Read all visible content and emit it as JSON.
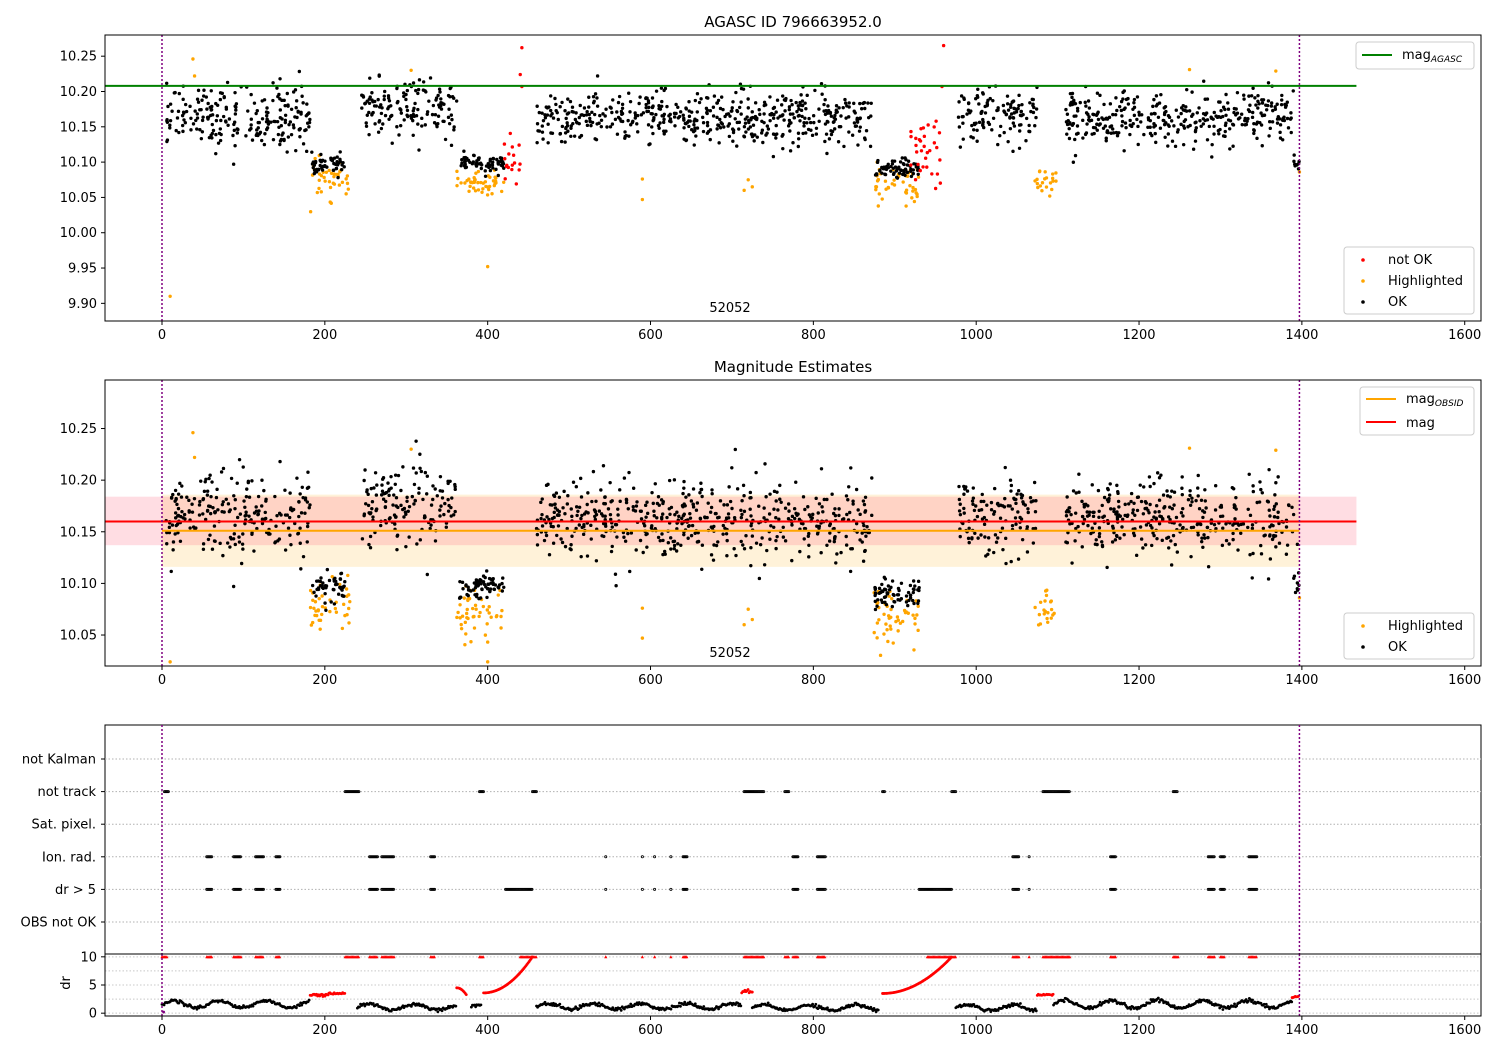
{
  "chart_data": [
    {
      "type": "scatter",
      "title": "AGASC ID 796663952.0",
      "xlim": [
        -70,
        1620
      ],
      "ylim": [
        9.875,
        10.28
      ],
      "xticks": [
        0,
        200,
        400,
        600,
        800,
        1000,
        1200,
        1400,
        1600
      ],
      "yticks": [
        9.9,
        9.95,
        10.0,
        10.05,
        10.1,
        10.15,
        10.2,
        10.25
      ],
      "obsid_boundaries": [
        0,
        1397
      ],
      "obsid_label": "52052",
      "lines": [
        {
          "name": "mag",
          "subscript": "AGASC",
          "y": 10.208,
          "x_range": [
            -70,
            1467
          ],
          "color": "#008000"
        }
      ],
      "legend": {
        "placement": "lower right",
        "entries": [
          {
            "label": "not OK",
            "color": "#ff0000"
          },
          {
            "label": "Highlighted",
            "color": "#ffa500"
          },
          {
            "label": "OK",
            "color": "#000000"
          }
        ]
      },
      "line_legend": {
        "placement": "upper right"
      },
      "segments": [
        {
          "x": [
            5,
            182
          ],
          "mean": 10.165,
          "sd": 0.022,
          "kind": "ok"
        },
        {
          "x": [
            182,
            232
          ],
          "mean": 10.075,
          "sd": 0.013,
          "kind": "hl"
        },
        {
          "x": [
            184,
            225
          ],
          "mean": 10.095,
          "sd": 0.007,
          "kind": "ok"
        },
        {
          "x": [
            245,
            362
          ],
          "mean": 10.175,
          "sd": 0.02,
          "kind": "ok"
        },
        {
          "x": [
            362,
            420
          ],
          "mean": 10.072,
          "sd": 0.012,
          "kind": "hl"
        },
        {
          "x": [
            365,
            420
          ],
          "mean": 10.097,
          "sd": 0.006,
          "kind": "ok"
        },
        {
          "x": [
            420,
            441
          ],
          "mean": 10.105,
          "sd": 0.015,
          "kind": "bad"
        },
        {
          "x": [
            460,
            872
          ],
          "mean": 10.162,
          "sd": 0.019,
          "kind": "ok"
        },
        {
          "x": [
            872,
            930
          ],
          "mean": 10.068,
          "sd": 0.015,
          "kind": "hl"
        },
        {
          "x": [
            875,
            930
          ],
          "mean": 10.09,
          "sd": 0.007,
          "kind": "ok"
        },
        {
          "x": [
            918,
            958
          ],
          "mean": 10.115,
          "sd": 0.02,
          "kind": "bad"
        },
        {
          "x": [
            978,
            1075
          ],
          "mean": 10.165,
          "sd": 0.019,
          "kind": "ok"
        },
        {
          "x": [
            1072,
            1098
          ],
          "mean": 10.072,
          "sd": 0.009,
          "kind": "hl"
        },
        {
          "x": [
            1110,
            1390
          ],
          "mean": 10.163,
          "sd": 0.019,
          "kind": "ok"
        },
        {
          "x": [
            1390,
            1397
          ],
          "mean": 10.1,
          "sd": 0.01,
          "kind": "ok"
        }
      ],
      "points": [
        {
          "x": 10,
          "y": 9.91,
          "kind": "hl"
        },
        {
          "x": 400,
          "y": 9.952,
          "kind": "hl"
        },
        {
          "x": 38,
          "y": 10.246,
          "kind": "hl"
        },
        {
          "x": 40,
          "y": 10.222,
          "kind": "hl"
        },
        {
          "x": 306,
          "y": 10.23,
          "kind": "hl"
        },
        {
          "x": 590,
          "y": 10.076,
          "kind": "hl"
        },
        {
          "x": 590,
          "y": 10.047,
          "kind": "hl"
        },
        {
          "x": 715,
          "y": 10.06,
          "kind": "hl"
        },
        {
          "x": 720,
          "y": 10.075,
          "kind": "hl"
        },
        {
          "x": 725,
          "y": 10.065,
          "kind": "hl"
        },
        {
          "x": 1262,
          "y": 10.231,
          "kind": "hl"
        },
        {
          "x": 1368,
          "y": 10.229,
          "kind": "hl"
        },
        {
          "x": 1397,
          "y": 10.086,
          "kind": "hl"
        },
        {
          "x": 442,
          "y": 10.262,
          "kind": "bad"
        },
        {
          "x": 440,
          "y": 10.224,
          "kind": "bad"
        },
        {
          "x": 442,
          "y": 10.207,
          "kind": "bad"
        },
        {
          "x": 960,
          "y": 10.265,
          "kind": "bad"
        },
        {
          "x": 958,
          "y": 10.207,
          "kind": "bad"
        },
        {
          "x": 145,
          "y": 10.218,
          "kind": "ok"
        },
        {
          "x": 88,
          "y": 10.097,
          "kind": "ok"
        },
        {
          "x": 810,
          "y": 10.211,
          "kind": "ok"
        }
      ]
    },
    {
      "type": "scatter",
      "title": "Magnitude Estimates",
      "xlim": [
        -70,
        1620
      ],
      "ylim": [
        10.02,
        10.297
      ],
      "xticks": [
        0,
        200,
        400,
        600,
        800,
        1000,
        1200,
        1400,
        1600
      ],
      "yticks": [
        10.05,
        10.1,
        10.15,
        10.2,
        10.25
      ],
      "obsid_boundaries": [
        0,
        1397
      ],
      "obsid_label": "52052",
      "lines": [
        {
          "name": "mag",
          "subscript": "OBSID",
          "y": 10.151,
          "x_range": [
            0,
            1397
          ],
          "color": "#ffa500"
        },
        {
          "name": "mag",
          "subscript": "",
          "y": 10.16,
          "x_range": [
            -70,
            1467
          ],
          "color": "#ff0000"
        }
      ],
      "bands": [
        {
          "y_range": [
            10.116,
            10.186
          ],
          "x_range": [
            0,
            1397
          ],
          "color": "#ffa500"
        },
        {
          "y_range": [
            10.137,
            10.184
          ],
          "x_range": [
            -70,
            1467
          ],
          "color": "#ff6680"
        }
      ],
      "legend": {
        "placement": "lower right",
        "entries": [
          {
            "label": "Highlighted",
            "color": "#ffa500"
          },
          {
            "label": "OK",
            "color": "#000000"
          }
        ]
      },
      "line_legend": {
        "placement": "upper right"
      },
      "segments": [
        {
          "x": [
            5,
            182
          ],
          "mean": 10.165,
          "sd": 0.022,
          "kind": "ok"
        },
        {
          "x": [
            182,
            232
          ],
          "mean": 10.075,
          "sd": 0.013,
          "kind": "hl"
        },
        {
          "x": [
            184,
            225
          ],
          "mean": 10.095,
          "sd": 0.007,
          "kind": "ok"
        },
        {
          "x": [
            245,
            362
          ],
          "mean": 10.175,
          "sd": 0.02,
          "kind": "ok"
        },
        {
          "x": [
            362,
            420
          ],
          "mean": 10.072,
          "sd": 0.012,
          "kind": "hl"
        },
        {
          "x": [
            365,
            420
          ],
          "mean": 10.097,
          "sd": 0.006,
          "kind": "ok"
        },
        {
          "x": [
            460,
            872
          ],
          "mean": 10.162,
          "sd": 0.019,
          "kind": "ok"
        },
        {
          "x": [
            872,
            930
          ],
          "mean": 10.068,
          "sd": 0.015,
          "kind": "hl"
        },
        {
          "x": [
            875,
            930
          ],
          "mean": 10.09,
          "sd": 0.007,
          "kind": "ok"
        },
        {
          "x": [
            978,
            1075
          ],
          "mean": 10.165,
          "sd": 0.019,
          "kind": "ok"
        },
        {
          "x": [
            1072,
            1098
          ],
          "mean": 10.072,
          "sd": 0.009,
          "kind": "hl"
        },
        {
          "x": [
            1110,
            1390
          ],
          "mean": 10.163,
          "sd": 0.019,
          "kind": "ok"
        },
        {
          "x": [
            1390,
            1397
          ],
          "mean": 10.1,
          "sd": 0.01,
          "kind": "ok"
        }
      ],
      "points": [
        {
          "x": 10,
          "y": 10.024,
          "kind": "hl"
        },
        {
          "x": 400,
          "y": 10.024,
          "kind": "hl"
        },
        {
          "x": 38,
          "y": 10.246,
          "kind": "hl"
        },
        {
          "x": 40,
          "y": 10.222,
          "kind": "hl"
        },
        {
          "x": 306,
          "y": 10.23,
          "kind": "hl"
        },
        {
          "x": 590,
          "y": 10.076,
          "kind": "hl"
        },
        {
          "x": 590,
          "y": 10.047,
          "kind": "hl"
        },
        {
          "x": 715,
          "y": 10.06,
          "kind": "hl"
        },
        {
          "x": 720,
          "y": 10.075,
          "kind": "hl"
        },
        {
          "x": 725,
          "y": 10.065,
          "kind": "hl"
        },
        {
          "x": 1262,
          "y": 10.231,
          "kind": "hl"
        },
        {
          "x": 1368,
          "y": 10.229,
          "kind": "hl"
        },
        {
          "x": 1397,
          "y": 10.086,
          "kind": "hl"
        },
        {
          "x": 145,
          "y": 10.218,
          "kind": "ok"
        },
        {
          "x": 88,
          "y": 10.097,
          "kind": "ok"
        },
        {
          "x": 810,
          "y": 10.211,
          "kind": "ok"
        }
      ]
    },
    {
      "type": "scatter",
      "title": "",
      "xlim": [
        -70,
        1620
      ],
      "categories": [
        "not Kalman",
        "not track",
        "Sat. pixel.",
        "Ion. rad.",
        "dr > 5",
        "OBS not OK"
      ],
      "obsid_boundaries": [
        0,
        1397
      ],
      "flags": {
        "not Kalman": [],
        "not track": [
          [
            3,
            8
          ],
          [
            225,
            242
          ],
          [
            390,
            395
          ],
          [
            455,
            460
          ],
          [
            715,
            740
          ],
          [
            765,
            770
          ],
          [
            885,
            888
          ],
          [
            970,
            975
          ],
          [
            1082,
            1115
          ],
          [
            1242,
            1248
          ]
        ],
        "Sat. pixel.": [],
        "Ion. rad.": [
          [
            55,
            62
          ],
          [
            88,
            97
          ],
          [
            115,
            125
          ],
          [
            140,
            145
          ],
          [
            255,
            265
          ],
          [
            270,
            285
          ],
          [
            330,
            335
          ],
          [
            545,
            545
          ],
          [
            590,
            590
          ],
          [
            605,
            605
          ],
          [
            625,
            625
          ],
          [
            640,
            645
          ],
          [
            775,
            782
          ],
          [
            805,
            815
          ],
          [
            1045,
            1053
          ],
          [
            1065,
            1065
          ],
          [
            1165,
            1172
          ],
          [
            1285,
            1293
          ],
          [
            1300,
            1305
          ],
          [
            1335,
            1345
          ]
        ],
        "dr > 5": [
          [
            55,
            62
          ],
          [
            88,
            97
          ],
          [
            115,
            125
          ],
          [
            140,
            145
          ],
          [
            255,
            265
          ],
          [
            270,
            285
          ],
          [
            330,
            335
          ],
          [
            422,
            455
          ],
          [
            545,
            545
          ],
          [
            590,
            590
          ],
          [
            605,
            605
          ],
          [
            625,
            625
          ],
          [
            640,
            645
          ],
          [
            775,
            782
          ],
          [
            805,
            815
          ],
          [
            930,
            970
          ],
          [
            1045,
            1053
          ],
          [
            1065,
            1065
          ],
          [
            1165,
            1172
          ],
          [
            1285,
            1293
          ],
          [
            1300,
            1305
          ],
          [
            1335,
            1345
          ]
        ],
        "OBS not OK": []
      }
    },
    {
      "type": "scatter",
      "title": "",
      "xlim": [
        -70,
        1620
      ],
      "ylim": [
        -0.5,
        10.5
      ],
      "yticks": [
        0,
        5,
        10
      ],
      "ylabel": "dr",
      "obsid_boundaries": [
        0,
        1397
      ],
      "threshold": 5,
      "clipped_at": 10,
      "segments": [
        {
          "x": [
            0,
            182
          ],
          "shape": "wave",
          "base": 1.6,
          "amp": 0.6,
          "kind": "ok"
        },
        {
          "x": [
            182,
            205
          ],
          "shape": "flat",
          "base": 3.2,
          "amp": 0.2,
          "kind": "bad"
        },
        {
          "x": [
            205,
            225
          ],
          "shape": "flat",
          "base": 3.5,
          "amp": 0.2,
          "kind": "bad"
        },
        {
          "x": [
            240,
            362
          ],
          "shape": "wave",
          "base": 1.1,
          "amp": 0.5,
          "kind": "ok"
        },
        {
          "x": [
            362,
            375
          ],
          "shape": "ramp",
          "from": 4.5,
          "to": 3.0,
          "kind": "bad"
        },
        {
          "x": [
            380,
            392
          ],
          "shape": "wave",
          "base": 1.2,
          "amp": 0.3,
          "kind": "ok"
        },
        {
          "x": [
            395,
            455
          ],
          "shape": "ramp",
          "from": 3.6,
          "to": 10,
          "kind": "bad"
        },
        {
          "x": [
            460,
            712
          ],
          "shape": "wave",
          "base": 1.2,
          "amp": 0.5,
          "kind": "ok"
        },
        {
          "x": [
            712,
            725
          ],
          "shape": "flat",
          "base": 3.8,
          "amp": 0.3,
          "kind": "bad"
        },
        {
          "x": [
            725,
            880
          ],
          "shape": "wave",
          "base": 1.0,
          "amp": 0.5,
          "kind": "ok"
        },
        {
          "x": [
            885,
            970
          ],
          "shape": "ramp",
          "from": 3.5,
          "to": 10,
          "kind": "bad"
        },
        {
          "x": [
            975,
            1075
          ],
          "shape": "wave",
          "base": 1.0,
          "amp": 0.5,
          "kind": "ok"
        },
        {
          "x": [
            1075,
            1095
          ],
          "shape": "flat",
          "base": 3.3,
          "amp": 0.3,
          "kind": "bad"
        },
        {
          "x": [
            1095,
            1388
          ],
          "shape": "wave",
          "base": 1.6,
          "amp": 0.7,
          "kind": "ok"
        },
        {
          "x": [
            1388,
            1397
          ],
          "shape": "flat",
          "base": 2.9,
          "amp": 0.2,
          "kind": "bad"
        }
      ],
      "clipped_ranges": [
        [
          0,
          6
        ],
        [
          55,
          62
        ],
        [
          88,
          97
        ],
        [
          115,
          125
        ],
        [
          140,
          145
        ],
        [
          225,
          242
        ],
        [
          255,
          265
        ],
        [
          270,
          285
        ],
        [
          330,
          335
        ],
        [
          390,
          395
        ],
        [
          440,
          460
        ],
        [
          545,
          545
        ],
        [
          590,
          590
        ],
        [
          605,
          605
        ],
        [
          625,
          625
        ],
        [
          640,
          645
        ],
        [
          715,
          740
        ],
        [
          765,
          770
        ],
        [
          775,
          782
        ],
        [
          805,
          815
        ],
        [
          940,
          975
        ],
        [
          1045,
          1053
        ],
        [
          1065,
          1065
        ],
        [
          1082,
          1115
        ],
        [
          1165,
          1172
        ],
        [
          1242,
          1248
        ],
        [
          1285,
          1293
        ],
        [
          1300,
          1305
        ],
        [
          1335,
          1345
        ]
      ]
    }
  ]
}
